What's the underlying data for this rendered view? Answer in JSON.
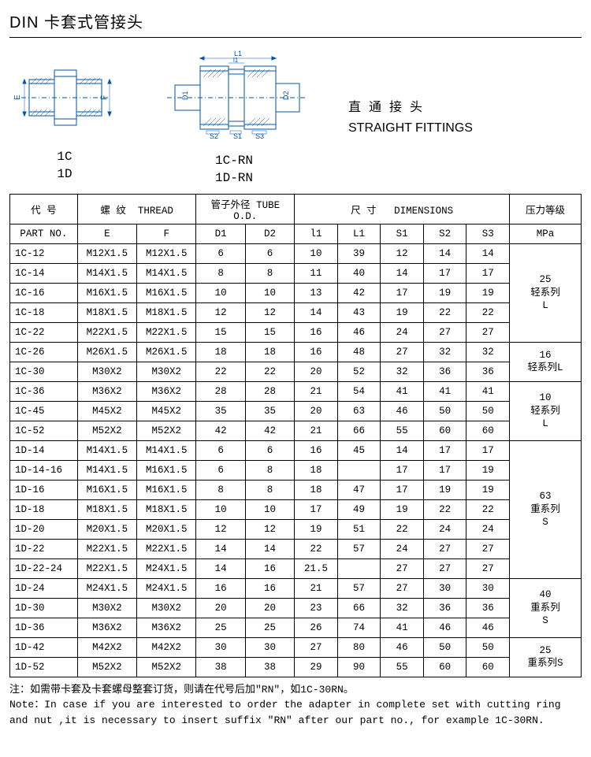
{
  "title": "DIN 卡套式管接头",
  "diagrams": {
    "left": {
      "labels": [
        "1C",
        "1D"
      ],
      "dims": [
        "E",
        "F"
      ]
    },
    "right": {
      "labels": [
        "1C-RN",
        "1D-RN"
      ],
      "dims": [
        "D1",
        "D2",
        "L1",
        "l1",
        "S1",
        "S2",
        "S3"
      ]
    },
    "side": {
      "cn": "直通接头",
      "en": "STRAIGHT FITTINGS"
    }
  },
  "table": {
    "header1": {
      "part_cn": "代  号",
      "thread_cn": "螺  纹",
      "thread_en": "THREAD",
      "tube_cn": "管子外径",
      "tube_en": "TUBE O.D.",
      "dim_cn": "尺  寸",
      "dim_en": "DIMENSIONS",
      "mpa_cn": "压力等级"
    },
    "header2": {
      "part_en": "PART  NO.",
      "E": "E",
      "F": "F",
      "D1": "D1",
      "D2": "D2",
      "l1": "l1",
      "L1": "L1",
      "S1": "S1",
      "S2": "S2",
      "S3": "S3",
      "mpa": "MPa"
    },
    "rows": [
      [
        "1C-12",
        "M12X1.5",
        "M12X1.5",
        "6",
        "6",
        "10",
        "39",
        "12",
        "14",
        "14"
      ],
      [
        "1C-14",
        "M14X1.5",
        "M14X1.5",
        "8",
        "8",
        "11",
        "40",
        "14",
        "17",
        "17"
      ],
      [
        "1C-16",
        "M16X1.5",
        "M16X1.5",
        "10",
        "10",
        "13",
        "42",
        "17",
        "19",
        "19"
      ],
      [
        "1C-18",
        "M18X1.5",
        "M18X1.5",
        "12",
        "12",
        "14",
        "43",
        "19",
        "22",
        "22"
      ],
      [
        "1C-22",
        "M22X1.5",
        "M22X1.5",
        "15",
        "15",
        "16",
        "46",
        "24",
        "27",
        "27"
      ],
      [
        "1C-26",
        "M26X1.5",
        "M26X1.5",
        "18",
        "18",
        "16",
        "48",
        "27",
        "32",
        "32"
      ],
      [
        "1C-30",
        "M30X2",
        "M30X2",
        "22",
        "22",
        "20",
        "52",
        "32",
        "36",
        "36"
      ],
      [
        "1C-36",
        "M36X2",
        "M36X2",
        "28",
        "28",
        "21",
        "54",
        "41",
        "41",
        "41"
      ],
      [
        "1C-45",
        "M45X2",
        "M45X2",
        "35",
        "35",
        "20",
        "63",
        "46",
        "50",
        "50"
      ],
      [
        "1C-52",
        "M52X2",
        "M52X2",
        "42",
        "42",
        "21",
        "66",
        "55",
        "60",
        "60"
      ],
      [
        "1D-14",
        "M14X1.5",
        "M14X1.5",
        "6",
        "6",
        "16",
        "45",
        "14",
        "17",
        "17"
      ],
      [
        "1D-14-16",
        "M14X1.5",
        "M16X1.5",
        "6",
        "8",
        "18",
        "",
        "17",
        "17",
        "19"
      ],
      [
        "1D-16",
        "M16X1.5",
        "M16X1.5",
        "8",
        "8",
        "18",
        "47",
        "17",
        "19",
        "19"
      ],
      [
        "1D-18",
        "M18X1.5",
        "M18X1.5",
        "10",
        "10",
        "17",
        "49",
        "19",
        "22",
        "22"
      ],
      [
        "1D-20",
        "M20X1.5",
        "M20X1.5",
        "12",
        "12",
        "19",
        "51",
        "22",
        "24",
        "24"
      ],
      [
        "1D-22",
        "M22X1.5",
        "M22X1.5",
        "14",
        "14",
        "22",
        "57",
        "24",
        "27",
        "27"
      ],
      [
        "1D-22-24",
        "M22X1.5",
        "M24X1.5",
        "14",
        "16",
        "21.5",
        "",
        "27",
        "27",
        "27"
      ],
      [
        "1D-24",
        "M24X1.5",
        "M24X1.5",
        "16",
        "16",
        "21",
        "57",
        "27",
        "30",
        "30"
      ],
      [
        "1D-30",
        "M30X2",
        "M30X2",
        "20",
        "20",
        "23",
        "66",
        "32",
        "36",
        "36"
      ],
      [
        "1D-36",
        "M36X2",
        "M36X2",
        "25",
        "25",
        "26",
        "74",
        "41",
        "46",
        "46"
      ],
      [
        "1D-42",
        "M42X2",
        "M42X2",
        "30",
        "30",
        "27",
        "80",
        "46",
        "50",
        "50"
      ],
      [
        "1D-52",
        "M52X2",
        "M52X2",
        "38",
        "38",
        "29",
        "90",
        "55",
        "60",
        "60"
      ]
    ],
    "mpa_groups": [
      {
        "span": 5,
        "label": "25\n轻系列\nL"
      },
      {
        "span": 2,
        "label": "16\n轻系列L"
      },
      {
        "span": 3,
        "label": "10\n轻系列\nL"
      },
      {
        "span": 7,
        "label": "63\n重系列\nS"
      },
      {
        "span": 3,
        "label": "40\n重系列\nS"
      },
      {
        "span": 2,
        "label": "25\n重系列S"
      }
    ]
  },
  "notes": {
    "cn": "注：如需带卡套及卡套螺母整套订货，则请在代号后加\"RN\"，如1C-30RN。",
    "en1": "Note：In case if you are interested to order the adapter in complete set with cutting ring",
    "en2": " and nut ,it is necessary to insert suffix \"RN\" after our part no., for example 1C-30RN."
  }
}
